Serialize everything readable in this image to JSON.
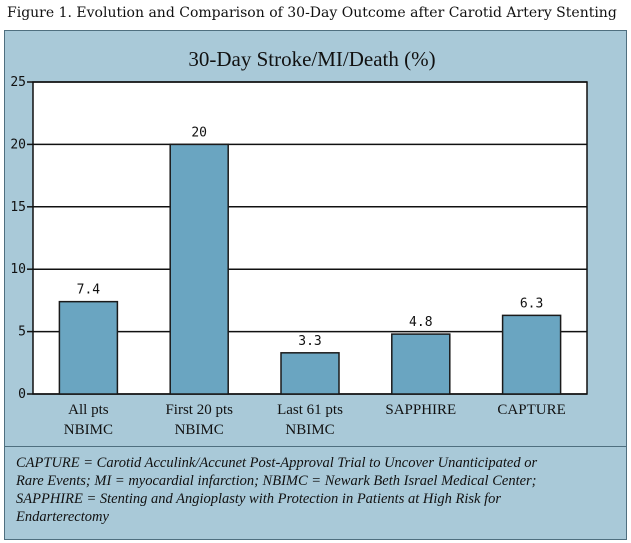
{
  "figure_caption": "Figure 1. Evolution and Comparison of 30-Day Outcome after Carotid Artery Stenting",
  "footnote_lines": [
    "CAPTURE = Carotid Acculink/Accunet Post-Approval Trial to Uncover Unanticipated or",
    "Rare Events; MI = myocardial infarction; NBIMC = Newark Beth Israel Medical Center;",
    "SAPPHIRE = Stenting and Angioplasty with Protection in Patients at High Risk for",
    "Endarterectomy"
  ],
  "colors": {
    "panel_background": "#a9c9d8",
    "plot_background": "#ffffff",
    "bar_fill": "#6aa5c1",
    "bar_stroke": "#1a1a1a",
    "gridline": "#111111"
  },
  "chart_data": {
    "type": "bar",
    "title": "30-Day Stroke/MI/Death (%)",
    "xlabel": "",
    "ylabel": "",
    "ylim": [
      0,
      25
    ],
    "yticks": [
      0,
      5,
      10,
      15,
      20,
      25
    ],
    "grid": true,
    "categories": [
      [
        "All pts",
        "NBIMC"
      ],
      [
        "First 20 pts",
        "NBIMC"
      ],
      [
        "Last 61 pts",
        "NBIMC"
      ],
      [
        "SAPPHIRE"
      ],
      [
        "CAPTURE"
      ]
    ],
    "values": [
      7.4,
      20,
      3.3,
      4.8,
      6.3
    ],
    "value_labels": [
      "7.4",
      "20",
      "3.3",
      "4.8",
      "6.3"
    ]
  }
}
